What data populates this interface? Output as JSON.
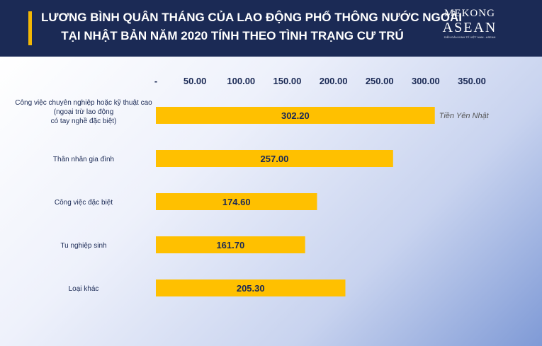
{
  "header": {
    "title_line1": "LƯƠNG BÌNH QUÂN THÁNG CỦA LAO ĐỘNG PHỔ THÔNG NƯỚC NGOÀI",
    "title_line2": "TẠI NHẬT BẢN NĂM 2020 TÍNH THEO TÌNH TRẠNG CƯ TRÚ"
  },
  "logo": {
    "line1": "MEKONG",
    "line2": "ASEAN",
    "tagline": "DIỄN ĐÀN KINH TẾ VIỆT NAM - ASEAN"
  },
  "colors": {
    "header": "#1b2a55",
    "bar": "#ffc000",
    "accent": "#f2b705",
    "text": "#1b2a55"
  },
  "chart_data": {
    "type": "bar",
    "orientation": "horizontal",
    "categories": [
      [
        "Công việc chuyên nghiệp hoặc kỹ thuật cao",
        "(ngoại trừ lao động",
        "có tay nghề đặc biệt)"
      ],
      [
        "Thân nhân gia đình"
      ],
      [
        "Công việc đặc biệt"
      ],
      [
        "Tu nghiệp sinh"
      ],
      [
        "Loại khác"
      ]
    ],
    "values": [
      302.2,
      257.0,
      174.6,
      161.7,
      205.3
    ],
    "value_labels": [
      "302.20",
      "257.00",
      "174.60",
      "161.70",
      "205.30"
    ],
    "x_ticks": [
      "-",
      "50.00",
      "100.00",
      "150.00",
      "200.00",
      "250.00",
      "300.00",
      "350.00"
    ],
    "x_tick_values": [
      0,
      50,
      100,
      150,
      200,
      250,
      300,
      350
    ],
    "xlim": [
      0,
      350
    ],
    "axis_position": "top",
    "unit_annotation": "Tiền Yên Nhật",
    "grid": false,
    "legend": "none"
  }
}
